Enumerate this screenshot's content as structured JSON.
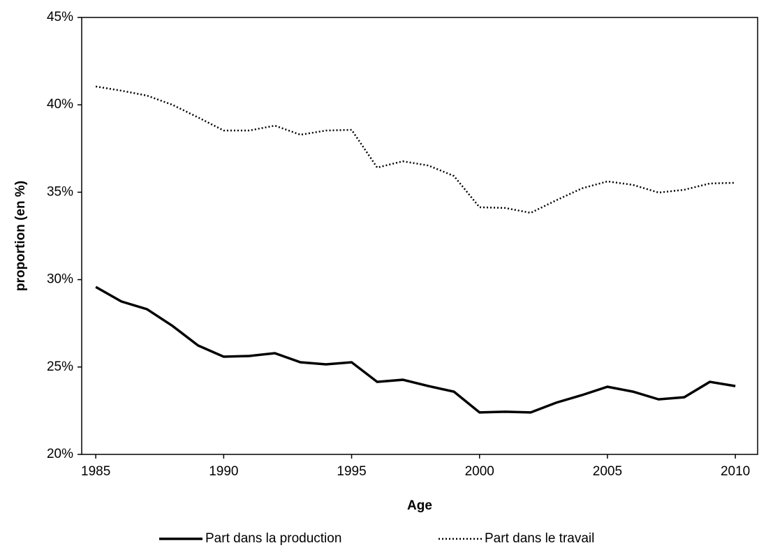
{
  "chart_data": {
    "type": "line",
    "x_label": "Age",
    "y_label": "proportion (en %)",
    "x": [
      1985,
      1986,
      1987,
      1988,
      1989,
      1990,
      1991,
      1992,
      1993,
      1994,
      1995,
      1996,
      1997,
      1998,
      1999,
      2000,
      2001,
      2002,
      2003,
      2004,
      2005,
      2006,
      2007,
      2008,
      2009,
      2010
    ],
    "series": [
      {
        "name": "Part dans la production",
        "color": "#000000",
        "dash": "solid",
        "values": [
          29.58,
          28.75,
          28.31,
          27.35,
          26.23,
          25.59,
          25.63,
          25.79,
          25.27,
          25.15,
          25.27,
          24.15,
          24.27,
          23.91,
          23.59,
          22.4,
          22.44,
          22.4,
          22.96,
          23.39,
          23.87,
          23.59,
          23.15,
          23.27,
          24.15,
          23.91
        ]
      },
      {
        "name": "Part dans le travail",
        "color": "#000000",
        "dash": "dotted",
        "values": [
          41.05,
          40.81,
          40.53,
          40.0,
          39.28,
          38.53,
          38.53,
          38.81,
          38.29,
          38.53,
          38.57,
          36.41,
          36.77,
          36.53,
          35.93,
          34.14,
          34.1,
          33.82,
          34.54,
          35.22,
          35.62,
          35.42,
          34.98,
          35.14,
          35.5,
          35.54
        ]
      }
    ],
    "xlim": [
      1984.45,
      2010.87
    ],
    "xticks": [
      1985,
      1990,
      1995,
      2000,
      2005,
      2010
    ],
    "ylim": [
      20,
      45
    ],
    "yticks": [
      {
        "value": 20,
        "label": "20%"
      },
      {
        "value": 25,
        "label": "25%"
      },
      {
        "value": 30,
        "label": "30%"
      },
      {
        "value": 35,
        "label": "35%"
      },
      {
        "value": 40,
        "label": "40%"
      },
      {
        "value": 45,
        "label": "45%"
      }
    ],
    "legend": "bottom"
  }
}
